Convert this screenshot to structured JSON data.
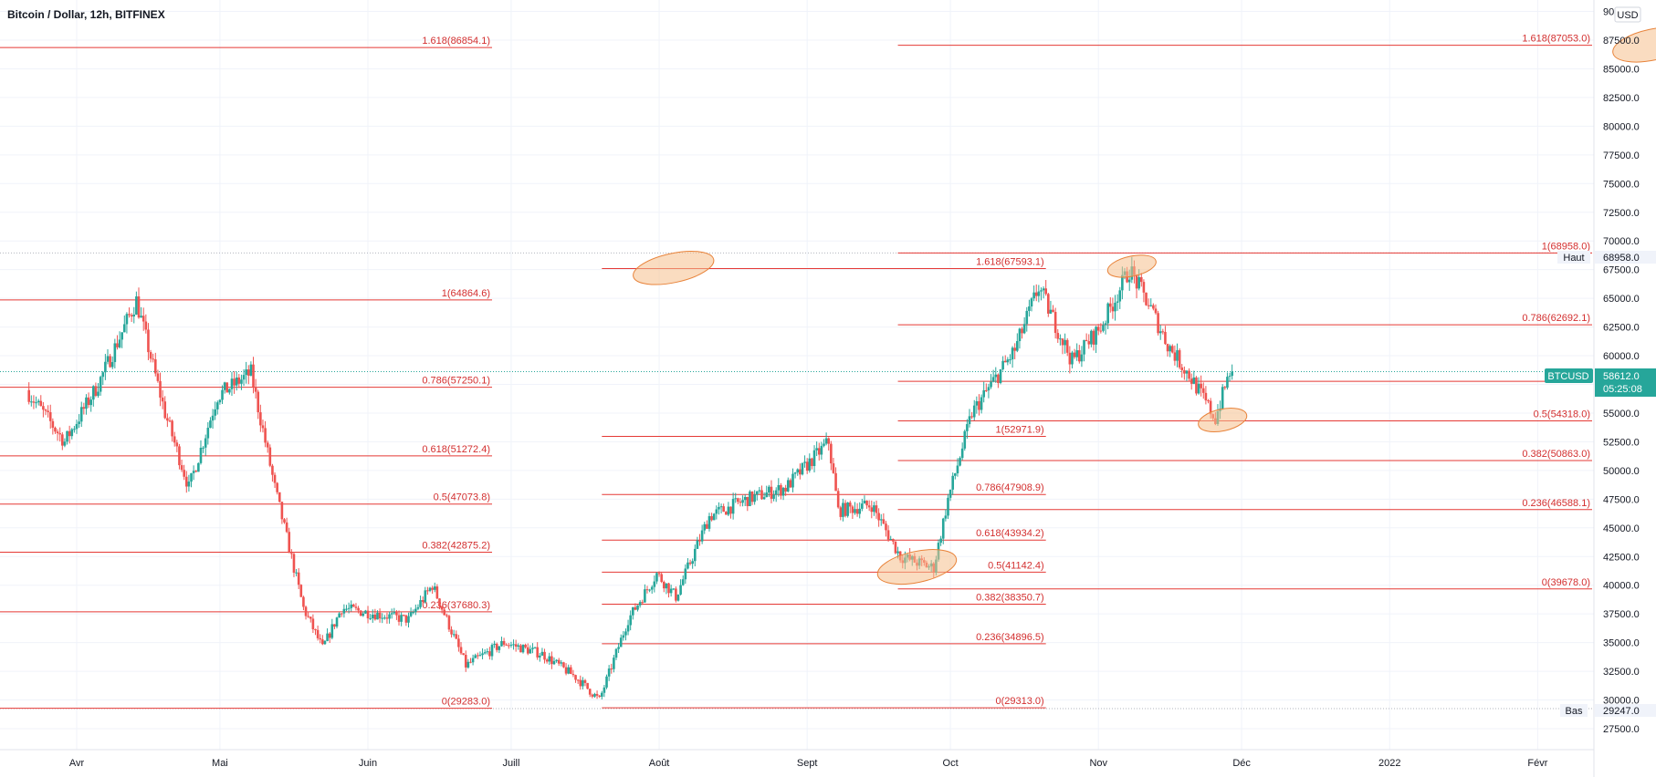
{
  "header": {
    "title": "Bitcoin / Dollar, 12h, BITFINEX",
    "currency_button": "USD"
  },
  "price_axis": {
    "ticks": [
      "90000.0",
      "87500.0",
      "85000.0",
      "82500.0",
      "80000.0",
      "77500.0",
      "75000.0",
      "72500.0",
      "70000.0",
      "67500.0",
      "65000.0",
      "62500.0",
      "60000.0",
      "57500.0",
      "55000.0",
      "52500.0",
      "50000.0",
      "47500.0",
      "45000.0",
      "42500.0",
      "40000.0",
      "37500.0",
      "35000.0",
      "32500.0",
      "30000.0",
      "27500.0"
    ],
    "high_label": "Haut",
    "high_value": "68958.0",
    "low_label": "Bas",
    "low_value": "29247.0",
    "symbol_label": "BTCUSD",
    "last_price": "58612.0",
    "countdown": "05:25:08"
  },
  "time_axis": {
    "labels": [
      "Avr",
      "Mai",
      "Juin",
      "Juill",
      "Août",
      "Sept",
      "Oct",
      "Nov",
      "Déc",
      "2022",
      "Févr"
    ]
  },
  "colors": {
    "bull": "#26a69a",
    "bear": "#ef5350",
    "fib_line": "#e53935",
    "fib_text": "#d32f2f",
    "highlight_fill": "#f6c08c",
    "highlight_stroke": "#e8833a",
    "last_price_bg": "#26a69a",
    "grid": "#f0f3fa"
  },
  "chart_data": {
    "type": "candlestick",
    "symbol": "BTCUSD",
    "exchange": "BITFINEX",
    "timeframe": "12h",
    "ylim": [
      27500,
      90000
    ],
    "grid": true,
    "key_levels": {
      "high": 68958.0,
      "low": 29247.0,
      "last": 58612.0
    },
    "price_path": [
      {
        "date": "2021-03-22",
        "price": 57000
      },
      {
        "date": "2021-03-30",
        "price": 52500
      },
      {
        "date": "2021-04-06",
        "price": 57500
      },
      {
        "date": "2021-04-14",
        "price": 64800
      },
      {
        "date": "2021-04-20",
        "price": 55000
      },
      {
        "date": "2021-04-25",
        "price": 48500
      },
      {
        "date": "2021-05-01",
        "price": 56500
      },
      {
        "date": "2021-05-08",
        "price": 58500
      },
      {
        "date": "2021-05-13",
        "price": 48500
      },
      {
        "date": "2021-05-19",
        "price": 38000
      },
      {
        "date": "2021-05-23",
        "price": 34500
      },
      {
        "date": "2021-05-27",
        "price": 38000
      },
      {
        "date": "2021-06-03",
        "price": 37500
      },
      {
        "date": "2021-06-10",
        "price": 37000
      },
      {
        "date": "2021-06-15",
        "price": 40000
      },
      {
        "date": "2021-06-22",
        "price": 33000
      },
      {
        "date": "2021-06-30",
        "price": 35000
      },
      {
        "date": "2021-07-08",
        "price": 34000
      },
      {
        "date": "2021-07-15",
        "price": 32000
      },
      {
        "date": "2021-07-20",
        "price": 30000
      },
      {
        "date": "2021-07-26",
        "price": 37000
      },
      {
        "date": "2021-08-01",
        "price": 41000
      },
      {
        "date": "2021-08-05",
        "price": 39000
      },
      {
        "date": "2021-08-12",
        "price": 46000
      },
      {
        "date": "2021-08-20",
        "price": 47500
      },
      {
        "date": "2021-08-28",
        "price": 48500
      },
      {
        "date": "2021-09-06",
        "price": 52500
      },
      {
        "date": "2021-09-08",
        "price": 46500
      },
      {
        "date": "2021-09-15",
        "price": 47000
      },
      {
        "date": "2021-09-21",
        "price": 42500
      },
      {
        "date": "2021-09-28",
        "price": 41500
      },
      {
        "date": "2021-10-01",
        "price": 47500
      },
      {
        "date": "2021-10-06",
        "price": 55000
      },
      {
        "date": "2021-10-15",
        "price": 60500
      },
      {
        "date": "2021-10-20",
        "price": 66000
      },
      {
        "date": "2021-10-27",
        "price": 59500
      },
      {
        "date": "2021-11-02",
        "price": 62500
      },
      {
        "date": "2021-11-08",
        "price": 67500
      },
      {
        "date": "2021-11-12",
        "price": 64500
      },
      {
        "date": "2021-11-16",
        "price": 61000
      },
      {
        "date": "2021-11-21",
        "price": 58000
      },
      {
        "date": "2021-11-26",
        "price": 54500
      },
      {
        "date": "2021-11-29",
        "price": 58612
      }
    ],
    "fibonacci_groups": [
      {
        "name": "fib-1",
        "x_start": "2021-03-10",
        "x_end": "2021-06-27",
        "levels": [
          {
            "label": "1.618(86854.1)",
            "value": 86854.1
          },
          {
            "label": "1(64864.6)",
            "value": 64864.6
          },
          {
            "label": "0.786(57250.1)",
            "value": 57250.1
          },
          {
            "label": "0.618(51272.4)",
            "value": 51272.4
          },
          {
            "label": "0.5(47073.8)",
            "value": 47073.8
          },
          {
            "label": "0.382(42875.2)",
            "value": 42875.2
          },
          {
            "label": "0.236(37680.3)",
            "value": 37680.3
          },
          {
            "label": "0(29283.0)",
            "value": 29283.0
          }
        ]
      },
      {
        "name": "fib-2",
        "x_start": "2021-07-20",
        "x_end": "2021-10-21",
        "levels": [
          {
            "label": "1.618(67593.1)",
            "value": 67593.1
          },
          {
            "label": "1(52971.9)",
            "value": 52971.9
          },
          {
            "label": "0.786(47908.9)",
            "value": 47908.9
          },
          {
            "label": "0.618(43934.2)",
            "value": 43934.2
          },
          {
            "label": "0.5(41142.4)",
            "value": 41142.4
          },
          {
            "label": "0.382(38350.7)",
            "value": 38350.7
          },
          {
            "label": "0.236(34896.5)",
            "value": 34896.5
          },
          {
            "label": "0(29313.0)",
            "value": 29313.0
          }
        ]
      },
      {
        "name": "fib-3",
        "x_start": "2021-09-20",
        "x_end": "2022-03-03",
        "levels": [
          {
            "label": "1.618(87053.0)",
            "value": 87053.0
          },
          {
            "label": "1(68958.0)",
            "value": 68958.0
          },
          {
            "label": "0.786(62692.1)",
            "value": 62692.1
          },
          {
            "label": "0.618(",
            "value": 57765.0
          },
          {
            "label": "0.5(54318.0)",
            "value": 54318.0
          },
          {
            "label": "0.382(50863.0)",
            "value": 50863.0
          },
          {
            "label": "0.236(46588.1)",
            "value": 46588.1
          },
          {
            "label": "0(39678.0)",
            "value": 39678.0
          }
        ]
      }
    ],
    "highlights": [
      {
        "date": "2021-11-08",
        "price": 67800
      },
      {
        "date": "2021-11-27",
        "price": 54400
      },
      {
        "date": "2021-09-24",
        "price": 41600
      },
      {
        "date": "2021-08-04",
        "price": 67650
      },
      {
        "date": "2022-02-25",
        "price": 87100
      }
    ]
  }
}
